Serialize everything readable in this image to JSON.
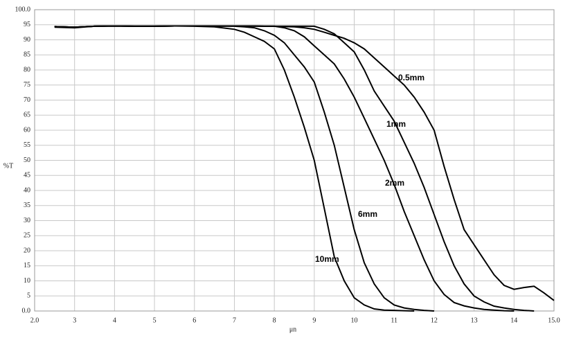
{
  "chart_data": {
    "type": "line",
    "xlabel": "μn",
    "ylabel": "%T",
    "x": [
      2.5,
      3,
      3.5,
      4,
      4.5,
      5,
      5.5,
      6,
      6.5,
      7,
      7.25,
      7.5,
      7.75,
      8,
      8.25,
      8.5,
      8.75,
      9,
      9.25,
      9.5,
      9.75,
      10,
      10.25,
      10.5,
      10.75,
      11,
      11.25,
      11.5,
      11.75,
      12,
      12.25,
      12.5,
      12.75,
      13,
      13.25,
      13.5,
      13.75,
      14,
      14.25,
      14.5,
      14.75,
      15
    ],
    "series": [
      {
        "name": "0.5mm",
        "color": "#000000",
        "values": [
          94.4,
          94.2,
          94.5,
          94.6,
          94.5,
          94.5,
          94.6,
          94.6,
          94.6,
          94.6,
          94.6,
          94.6,
          94.5,
          94.5,
          94.4,
          94.3,
          94,
          93.5,
          92.5,
          91.5,
          90.5,
          89,
          87,
          84,
          81,
          78,
          75,
          71,
          66,
          60,
          48,
          37,
          27,
          22,
          17,
          12,
          8.5,
          7.2,
          7.8,
          8.2,
          6,
          3.5
        ]
      },
      {
        "name": "1mm",
        "color": "#000000",
        "values": [
          94.4,
          94.2,
          94.5,
          94.6,
          94.5,
          94.5,
          94.6,
          94.6,
          94.6,
          94.6,
          94.6,
          94.6,
          94.5,
          94.5,
          94.5,
          94.5,
          94.5,
          94.5,
          93.5,
          92,
          89,
          86,
          80,
          73,
          68,
          63,
          56,
          49,
          41,
          32,
          23,
          15,
          9,
          5,
          3,
          1.6,
          1,
          0.5,
          0.2,
          0,
          null,
          null
        ]
      },
      {
        "name": "2mm",
        "color": "#000000",
        "values": [
          94.4,
          94.2,
          94.5,
          94.6,
          94.5,
          94.5,
          94.6,
          94.6,
          94.6,
          94.6,
          94.6,
          94.5,
          94.5,
          94.5,
          94,
          93,
          91,
          88,
          85,
          82,
          77,
          71,
          64,
          57,
          50,
          42,
          33,
          25,
          17,
          10,
          5.5,
          2.8,
          1.7,
          1,
          0.5,
          0.3,
          0.1,
          0,
          null,
          null,
          null,
          null
        ]
      },
      {
        "name": "6mm",
        "color": "#000000",
        "values": [
          94.4,
          94.2,
          94.5,
          94.6,
          94.5,
          94.5,
          94.6,
          94.6,
          94.5,
          94.5,
          94.3,
          94,
          93,
          91.5,
          89,
          85,
          81,
          76,
          66,
          55,
          41,
          27,
          16,
          9,
          4.4,
          2,
          1,
          0.5,
          0.2,
          0,
          null,
          null,
          null,
          null,
          null,
          null,
          null,
          null,
          null,
          null,
          null,
          null
        ]
      },
      {
        "name": "10mm",
        "color": "#000000",
        "values": [
          94.2,
          94,
          94.5,
          94.6,
          94.5,
          94.5,
          94.6,
          94.5,
          94.3,
          93.5,
          92.5,
          91,
          89.5,
          87,
          80,
          71,
          61,
          50,
          34,
          18,
          10,
          4.4,
          2,
          0.7,
          0.3,
          0.2,
          0.1,
          0,
          null,
          null,
          null,
          null,
          null,
          null,
          null,
          null,
          null,
          null,
          null,
          null,
          null,
          null
        ]
      }
    ],
    "xlim": [
      2,
      15
    ],
    "xticks": [
      {
        "value": 2,
        "label": "2.0"
      },
      3,
      4,
      5,
      6,
      7,
      8,
      9,
      10,
      11,
      12,
      13,
      14,
      {
        "value": 15,
        "label": "15.0"
      }
    ],
    "ylim": [
      0,
      100
    ],
    "yticks": [
      {
        "value": 0,
        "label": "0.0"
      },
      5,
      10,
      15,
      20,
      25,
      30,
      35,
      40,
      45,
      50,
      55,
      60,
      65,
      70,
      75,
      80,
      85,
      90,
      95,
      {
        "value": 100,
        "label": "100.0"
      }
    ],
    "grid": true
  }
}
